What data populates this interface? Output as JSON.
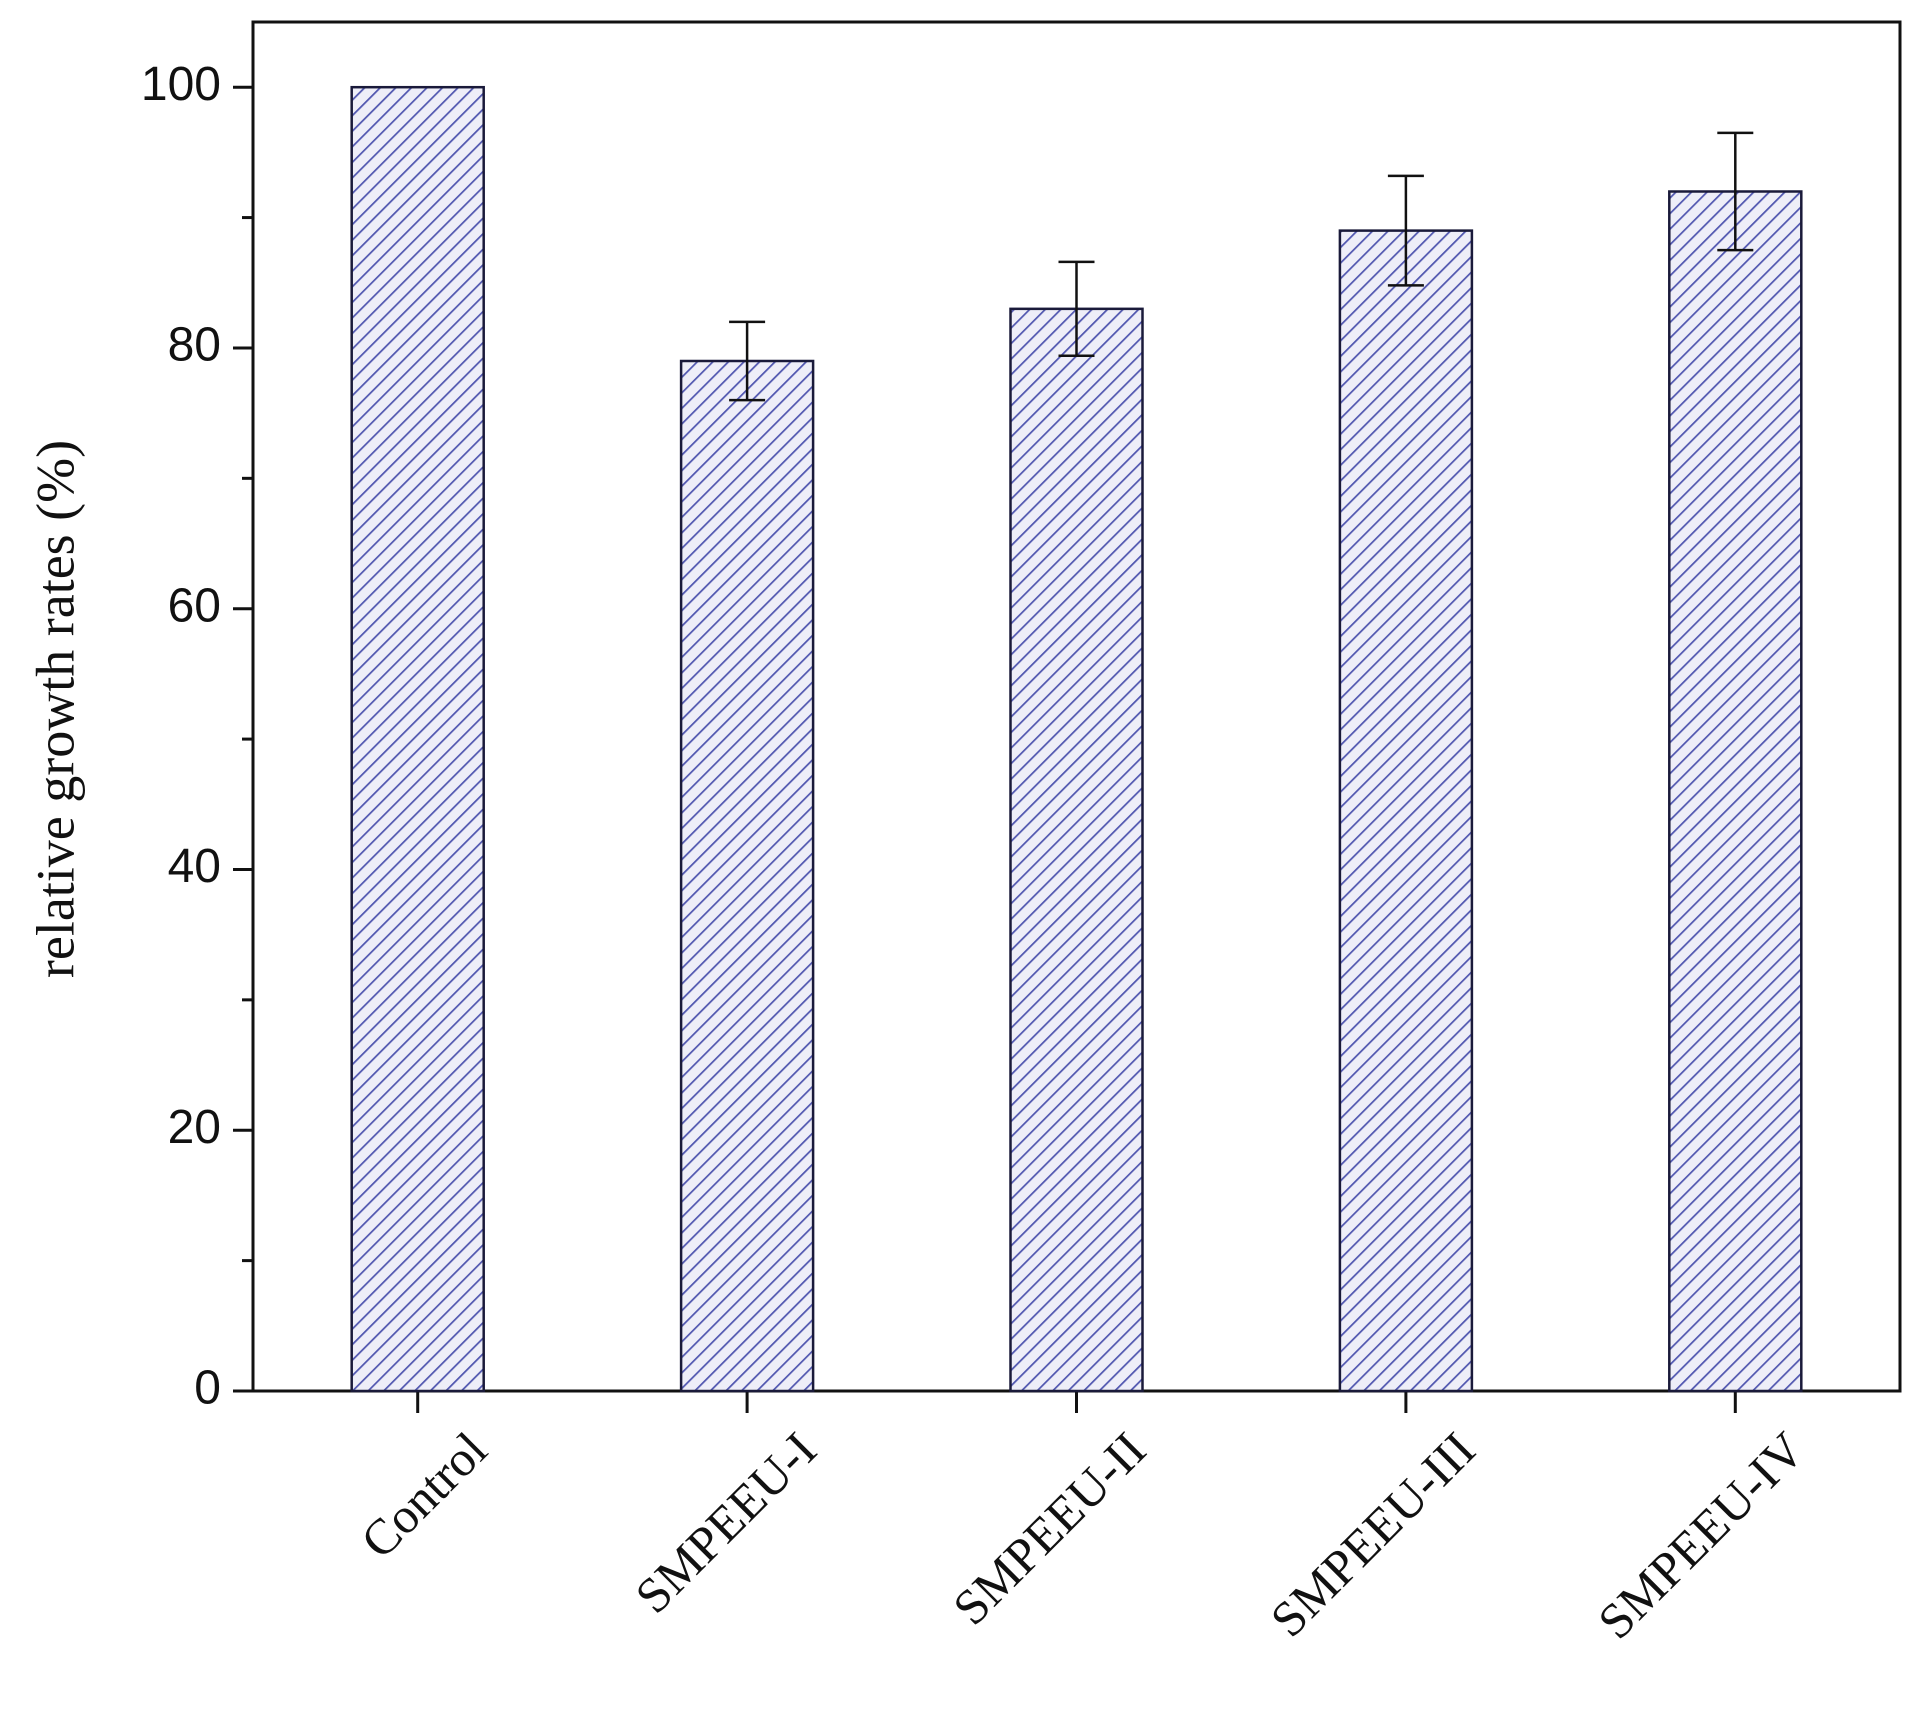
{
  "chart_data": {
    "type": "bar",
    "y_label": "relative growth rates (%)",
    "categories": [
      "Control",
      "SMPEEU-I",
      "SMPEEU-II",
      "SMPEEU-III",
      "SMPEEU-IV"
    ],
    "values": [
      100,
      79,
      83,
      89,
      92
    ],
    "errors": [
      null,
      3,
      3.6,
      4.2,
      4.5
    ],
    "color": "#5157b0",
    "ylim": [
      0,
      105
    ],
    "yticks": [
      0,
      20,
      40,
      60,
      80,
      100
    ],
    "yminorticks": [
      10,
      30,
      50,
      70,
      90
    ],
    "hatch": true
  }
}
